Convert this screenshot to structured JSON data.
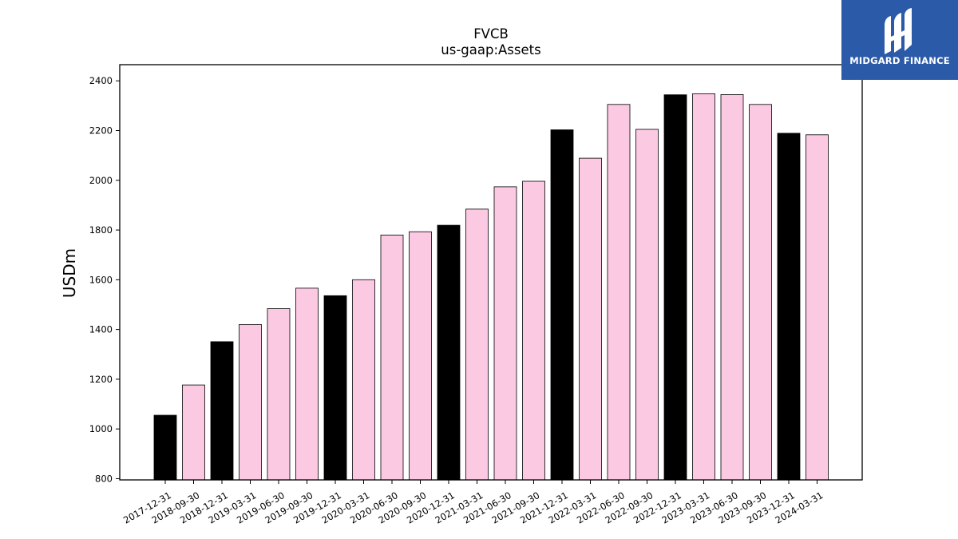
{
  "chart_data": {
    "type": "bar",
    "title": "FVCB",
    "subtitle": "us-gaap:Assets",
    "xlabel": "",
    "ylabel": "USDm",
    "ylim": [
      795,
      2465
    ],
    "yticks": [
      800,
      1000,
      1200,
      1400,
      1600,
      1800,
      2000,
      2200,
      2400
    ],
    "grid": false,
    "categories": [
      "2017-12-31",
      "2018-09-30",
      "2018-12-31",
      "2019-03-31",
      "2019-06-30",
      "2019-09-30",
      "2019-12-31",
      "2020-03-31",
      "2020-06-30",
      "2020-09-30",
      "2020-12-31",
      "2021-03-31",
      "2021-06-30",
      "2021-09-30",
      "2021-12-31",
      "2022-03-31",
      "2022-06-30",
      "2022-09-30",
      "2022-12-31",
      "2023-03-31",
      "2023-06-30",
      "2023-09-30",
      "2023-12-31",
      "2024-03-31"
    ],
    "values": [
      1055,
      1177,
      1351,
      1420,
      1484,
      1566,
      1536,
      1600,
      1780,
      1793,
      1819,
      1884,
      1974,
      1996,
      2203,
      2089,
      2305,
      2205,
      2344,
      2348,
      2345,
      2305,
      2189,
      2183
    ],
    "bar_colors": [
      "#000000",
      "#fcc9e3",
      "#000000",
      "#fcc9e3",
      "#fcc9e3",
      "#fcc9e3",
      "#000000",
      "#fcc9e3",
      "#fcc9e3",
      "#fcc9e3",
      "#000000",
      "#fcc9e3",
      "#fcc9e3",
      "#fcc9e3",
      "#000000",
      "#fcc9e3",
      "#fcc9e3",
      "#fcc9e3",
      "#000000",
      "#fcc9e3",
      "#fcc9e3",
      "#fcc9e3",
      "#000000",
      "#fcc9e3"
    ]
  },
  "logo": {
    "text": "MIDGARD FINANCE",
    "background": "#2b5aa8"
  }
}
